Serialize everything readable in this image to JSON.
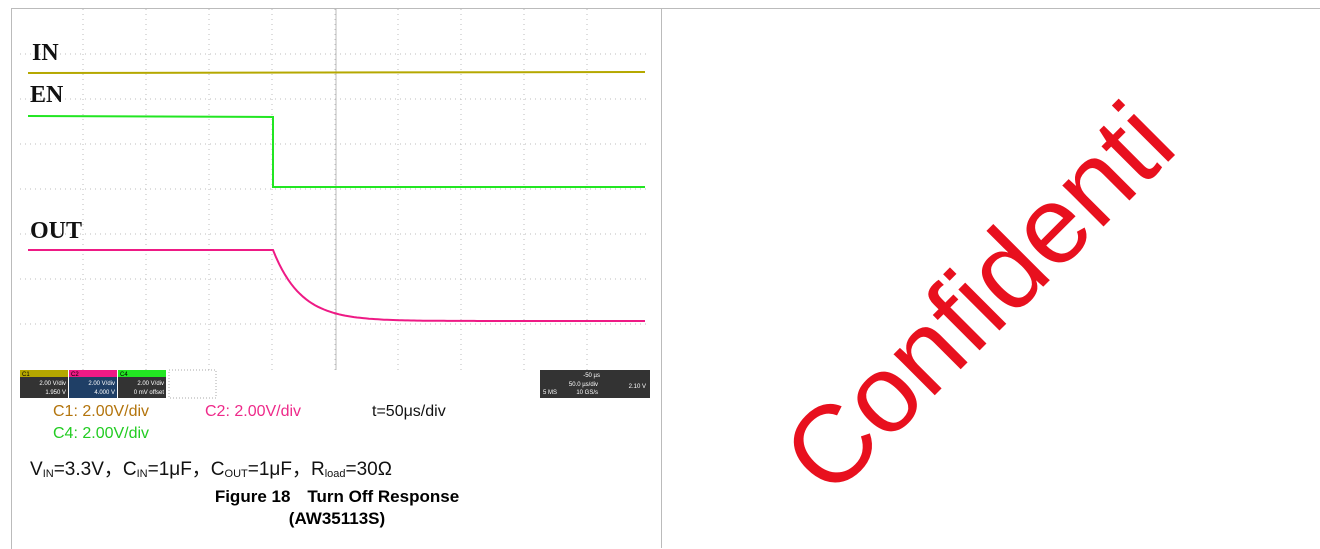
{
  "figure": {
    "trace_labels": [
      "IN",
      "EN",
      "OUT"
    ],
    "scope_status": {
      "channels": [
        {
          "name": "C1",
          "scale": "2.00 V/div",
          "offset": "1.950 V"
        },
        {
          "name": "C2",
          "scale": "2.00 V/div",
          "offset": "4.000 V"
        },
        {
          "name": "C4",
          "scale": "2.00 V/div",
          "offset": "0 mV offset"
        }
      ],
      "timebase": [
        "-50 µs",
        "50.0 µs/div",
        "10 GS/s",
        "5 MS",
        "2.10 V"
      ]
    },
    "settings": [
      "C1: 2.00V/div",
      "C2: 2.00V/div",
      "t=50μs/div",
      "C4: 2.00V/div"
    ],
    "conditions": [
      "V",
      "IN",
      "=3.3V，C",
      "IN",
      "=1μF，C",
      "OUT",
      "=1μF，R",
      "load",
      "=30Ω"
    ],
    "caption": "Figure 18　Turn Off Response",
    "part": "(AW35113S)"
  },
  "watermark": "Confidential"
}
